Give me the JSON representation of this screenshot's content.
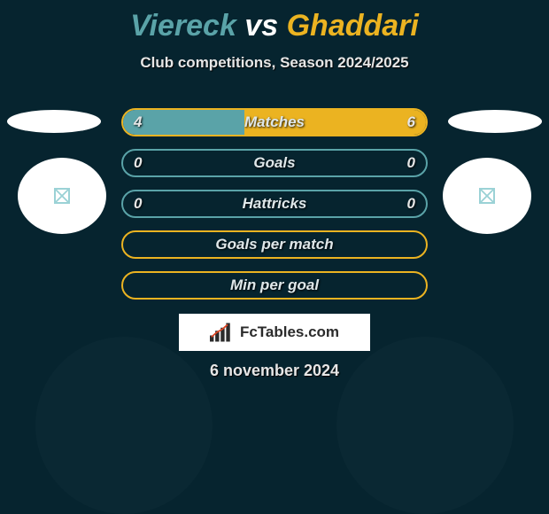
{
  "colors": {
    "bg": "#06242f",
    "teal": "#5aa3a8",
    "gold": "#ebb321",
    "white": "#ffffff",
    "text": "#e6e6e6"
  },
  "title": {
    "player1": "Viereck",
    "vs": "vs",
    "player2": "Ghaddari"
  },
  "subtitle": "Club competitions, Season 2024/2025",
  "rows": [
    {
      "label": "Matches",
      "left": "4",
      "right": "6",
      "fillLeftPct": 40,
      "fillRightPct": 60,
      "borderColor": "#ebb321"
    },
    {
      "label": "Goals",
      "left": "0",
      "right": "0",
      "fillLeftPct": 0,
      "fillRightPct": 0,
      "borderColor": "#5aa3a8"
    },
    {
      "label": "Hattricks",
      "left": "0",
      "right": "0",
      "fillLeftPct": 0,
      "fillRightPct": 0,
      "borderColor": "#5aa3a8"
    },
    {
      "label": "Goals per match",
      "left": "",
      "right": "",
      "fillLeftPct": 0,
      "fillRightPct": 0,
      "borderColor": "#ebb321"
    },
    {
      "label": "Min per goal",
      "left": "",
      "right": "",
      "fillLeftPct": 0,
      "fillRightPct": 0,
      "borderColor": "#ebb321"
    }
  ],
  "logo": "FcTables.com",
  "date": "6 november 2024"
}
